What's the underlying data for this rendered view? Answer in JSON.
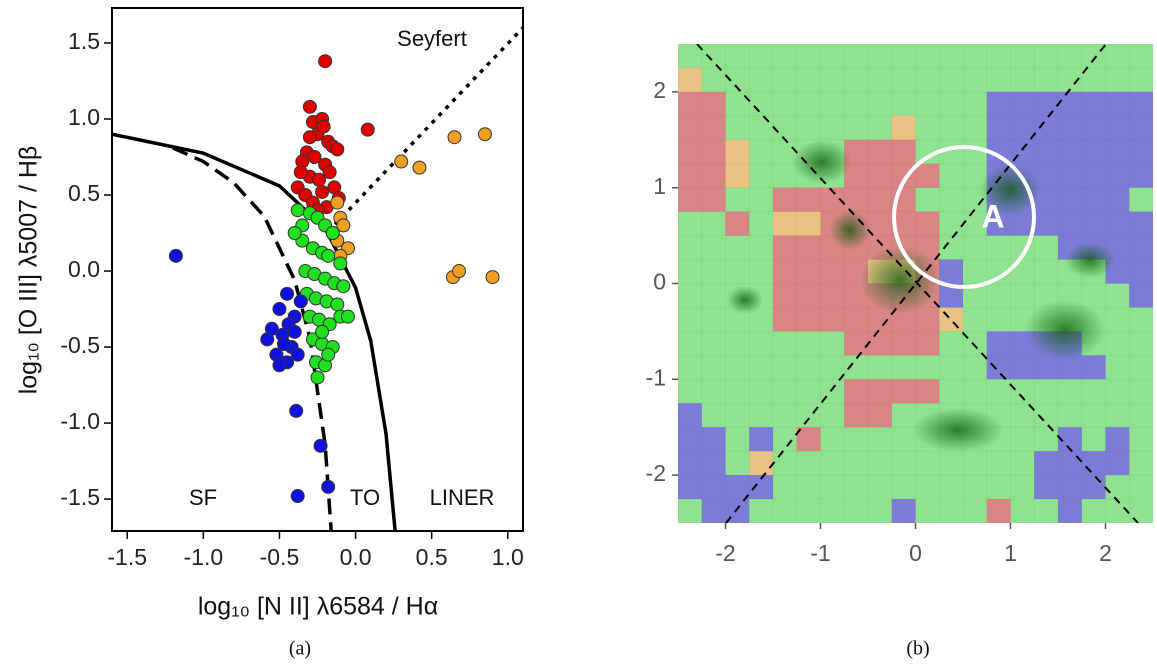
{
  "chart_data": [
    {
      "type": "scatter",
      "xlabel": "log₁₀ [N II] λ6584 / Hα",
      "ylabel": "log₁₀ [O III] λ5007 / Hβ",
      "caption": "(a)",
      "xlim": [
        -1.6,
        1.1
      ],
      "ylim": [
        -1.71,
        1.73
      ],
      "xticks": [
        -1.5,
        {
          "value": -1.0,
          "label": "-1.0"
        },
        -0.5,
        {
          "value": 0,
          "label": "0.0"
        },
        0.5,
        {
          "value": 1.0,
          "label": "1.0"
        }
      ],
      "yticks": [
        1.5,
        {
          "value": 1.0,
          "label": "1.0"
        },
        0.5,
        {
          "value": 0,
          "label": "0.0"
        },
        -0.5,
        {
          "value": -1.0,
          "label": "-1.0"
        },
        -1.5
      ],
      "annotations": [
        "Seyfert",
        "SF",
        "TO",
        "LINER"
      ],
      "series": [
        {
          "color": "#e00000",
          "x": [
            -0.2,
            0.08,
            -0.3,
            -0.28,
            -0.22,
            -0.25,
            -0.18,
            -0.15,
            -0.32,
            -0.35,
            -0.27,
            -0.2,
            -0.12,
            -0.3,
            -0.24,
            -0.17,
            -0.38,
            -0.33,
            -0.22,
            -0.14,
            -0.28,
            -0.19,
            -0.25,
            -0.36,
            -0.11,
            -0.3,
            -0.21
          ],
          "y": [
            1.38,
            0.93,
            1.08,
            0.98,
            1.0,
            0.9,
            0.85,
            0.82,
            0.78,
            0.72,
            0.75,
            0.7,
            0.8,
            0.62,
            0.6,
            0.65,
            0.55,
            0.5,
            0.52,
            0.55,
            0.45,
            0.42,
            0.4,
            0.65,
            0.48,
            0.88,
            0.95
          ]
        },
        {
          "color": "#f0a020",
          "x": [
            0.3,
            0.42,
            0.65,
            0.85,
            0.64,
            0.68,
            0.9,
            -0.12,
            -0.1,
            -0.08,
            -0.12,
            -0.05,
            -0.1,
            -0.15
          ],
          "y": [
            0.72,
            0.68,
            0.88,
            0.9,
            -0.04,
            0.0,
            -0.04,
            0.45,
            0.35,
            0.3,
            0.2,
            0.15,
            0.1,
            0.25
          ]
        },
        {
          "color": "#20e020",
          "x": [
            -0.38,
            -0.3,
            -0.25,
            -0.2,
            -0.15,
            -0.35,
            -0.28,
            -0.22,
            -0.18,
            -0.1,
            -0.33,
            -0.27,
            -0.2,
            -0.14,
            -0.08,
            -0.32,
            -0.26,
            -0.19,
            -0.12,
            -0.3,
            -0.24,
            -0.17,
            -0.1,
            -0.28,
            -0.22,
            -0.15,
            -0.26,
            -0.2,
            -0.25,
            -0.18,
            -0.22,
            -0.05,
            -0.35,
            -0.4
          ],
          "y": [
            0.4,
            0.38,
            0.35,
            0.3,
            0.25,
            0.2,
            0.15,
            0.12,
            0.1,
            0.05,
            0.0,
            -0.02,
            -0.05,
            -0.08,
            -0.1,
            -0.15,
            -0.18,
            -0.2,
            -0.22,
            -0.3,
            -0.32,
            -0.35,
            -0.3,
            -0.45,
            -0.48,
            -0.5,
            -0.6,
            -0.62,
            -0.7,
            -0.55,
            -0.4,
            -0.3,
            0.3,
            0.25
          ]
        },
        {
          "color": "#1010e0",
          "x": [
            -1.18,
            -0.39,
            -0.23,
            -0.38,
            -0.18,
            -0.45,
            -0.5,
            -0.55,
            -0.4,
            -0.48,
            -0.58,
            -0.42,
            -0.52,
            -0.45,
            -0.38,
            -0.5,
            -0.44,
            -0.36,
            -0.47,
            -0.4
          ],
          "y": [
            0.1,
            -0.92,
            -1.15,
            -1.48,
            -1.42,
            -0.15,
            -0.25,
            -0.38,
            -0.3,
            -0.42,
            -0.45,
            -0.5,
            -0.55,
            -0.6,
            -0.55,
            -0.62,
            -0.35,
            -0.2,
            -0.48,
            -0.4
          ]
        }
      ],
      "lines": [
        {
          "style": "dashed",
          "x": [
            -1.2,
            -1.0,
            -0.8,
            -0.6,
            -0.4,
            -0.3,
            -0.2,
            -0.16
          ],
          "y": [
            0.81,
            0.72,
            0.58,
            0.36,
            -0.06,
            -0.44,
            -1.14,
            -1.71
          ]
        },
        {
          "style": "solid",
          "x": [
            -1.6,
            -1.0,
            -0.5,
            -0.2,
            0.0,
            0.1,
            0.2,
            0.26
          ],
          "y": [
            0.9,
            0.775,
            0.56,
            0.28,
            -0.11,
            -0.46,
            -1.07,
            -1.71
          ]
        },
        {
          "style": "dotted",
          "x": [
            -0.18,
            1.1
          ],
          "y": [
            0.26,
            1.6
          ]
        }
      ]
    },
    {
      "type": "heatmap",
      "caption": "(b)",
      "xlim": [
        -2.5,
        2.5
      ],
      "ylim": [
        -2.5,
        2.5
      ],
      "xticks": [
        -2,
        -1,
        0,
        1,
        2
      ],
      "yticks": [
        -2,
        -1,
        0,
        1,
        2
      ],
      "annotations": [
        "A"
      ],
      "palette": {
        "G": "#8fe28f",
        "R": "#d98585",
        "O": "#e8c283",
        "B": "#7c7cd8"
      },
      "cells": [
        "GGGGGGGGGGGGGGGGGGGG",
        "OGGGGGGGGGGGGGGGGGGG",
        "RRGGGGGGGGGGGBBBBBBB",
        "RRGGGGGGGOGGGBBBBBBB",
        "RROGGGGRRRGGGBBBBBBB",
        "RROGGGGRRRRGGBBBBBBB",
        "RRGGRRRRRRGGGBBBBBBG",
        "GGRGOORRRRRGGBBBBBBB",
        "GGGGRRRRRRRGGGGGBBBB",
        "GGGGRRRROORBGGGGGGBB",
        "GGGGRRRRRRRBGGGGGGGB",
        "GGGGRRRRRRROGGGGGGGG",
        "GGGGGGGRRRRGGBBBBGGG",
        "GGGGGGGGGGGGGBBBBBGG",
        "GGGGGGGRRRRGGGGGGGGG",
        "BGGGGGGRRGGGGGGGGGGG",
        "BBGBGRGGGGGGGGGGBGBG",
        "BBGOGGGGGGGGGGGBBBBG",
        "BBBBGGGGGGGGGGGBBBGG",
        "GBBGGGGGGBGGGRGGBGGG"
      ]
    }
  ]
}
